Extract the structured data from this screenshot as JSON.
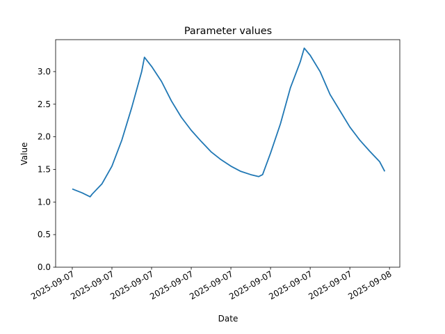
{
  "chart_data": {
    "type": "line",
    "title": "Parameter values",
    "xlabel": "Date",
    "ylabel": "Value",
    "x": [
      0,
      0.25,
      0.45,
      0.5,
      0.75,
      1.0,
      1.25,
      1.5,
      1.75,
      1.82,
      2.0,
      2.25,
      2.5,
      2.75,
      3.0,
      3.25,
      3.5,
      3.75,
      4.0,
      4.25,
      4.5,
      4.7,
      4.8,
      5.0,
      5.25,
      5.5,
      5.75,
      5.85,
      6.0,
      6.25,
      6.5,
      6.75,
      7.0,
      7.25,
      7.5,
      7.75,
      7.88
    ],
    "series": [
      {
        "name": "Value",
        "color": "#1f77b4",
        "values": [
          1.2,
          1.14,
          1.08,
          1.12,
          1.28,
          1.55,
          1.95,
          2.45,
          3.0,
          3.22,
          3.08,
          2.85,
          2.55,
          2.3,
          2.1,
          1.93,
          1.77,
          1.65,
          1.55,
          1.47,
          1.42,
          1.39,
          1.42,
          1.75,
          2.2,
          2.75,
          3.15,
          3.36,
          3.25,
          3.0,
          2.65,
          2.4,
          2.15,
          1.95,
          1.78,
          1.62,
          1.47
        ]
      }
    ],
    "xlim": [
      -0.42,
      8.26
    ],
    "ylim": [
      0,
      3.49
    ],
    "xticks": [
      {
        "value": 0,
        "label": "2025-09-07"
      },
      {
        "value": 1,
        "label": "2025-09-07"
      },
      {
        "value": 2,
        "label": "2025-09-07"
      },
      {
        "value": 3,
        "label": "2025-09-07"
      },
      {
        "value": 4,
        "label": "2025-09-07"
      },
      {
        "value": 5,
        "label": "2025-09-07"
      },
      {
        "value": 6,
        "label": "2025-09-07"
      },
      {
        "value": 7,
        "label": "2025-09-07"
      },
      {
        "value": 8,
        "label": "2025-09-08"
      }
    ],
    "yticks": [
      {
        "value": 0,
        "label": "0.0"
      },
      {
        "value": 0.5,
        "label": "0.5"
      },
      {
        "value": 1,
        "label": "1.0"
      },
      {
        "value": 1.5,
        "label": "1.5"
      },
      {
        "value": 2,
        "label": "2.0"
      },
      {
        "value": 2.5,
        "label": "2.5"
      },
      {
        "value": 3,
        "label": "3.0"
      }
    ],
    "grid": false
  }
}
